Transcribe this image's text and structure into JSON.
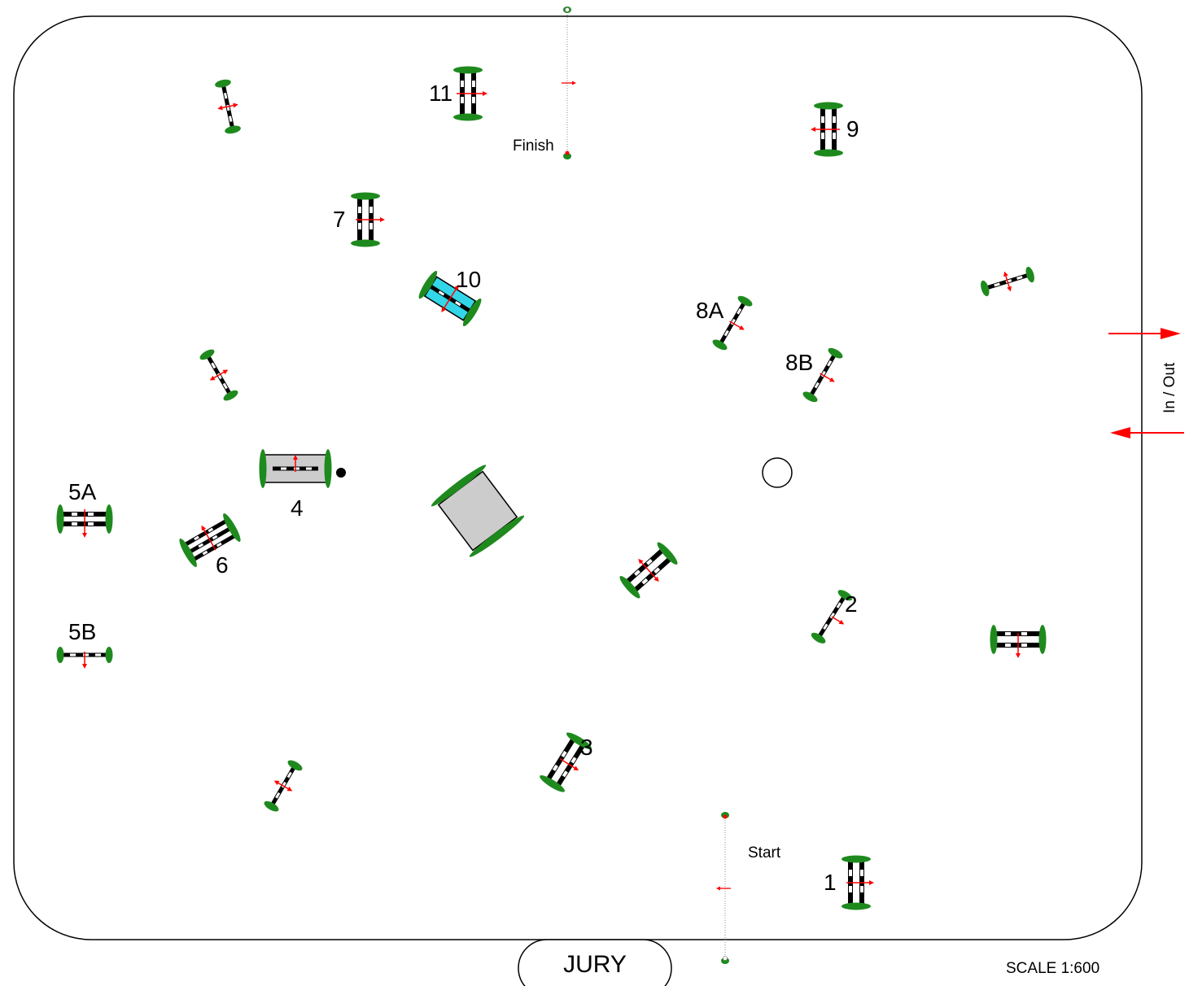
{
  "colors": {
    "arena_border": "#000000",
    "pole_dark": "#000000",
    "pole_light": "#ffffff",
    "wing_green": "#1e8a1e",
    "direction_arrow": "#ff0000",
    "water_fill": "#33d6e8",
    "box_fill": "#cccccc"
  },
  "labels": {
    "finish": "Finish",
    "start": "Start",
    "in_out": "In / Out",
    "jury": "JURY",
    "scale": "SCALE 1:600"
  },
  "obstacles": [
    {
      "number": "1"
    },
    {
      "number": "2"
    },
    {
      "number": "3"
    },
    {
      "number": "4"
    },
    {
      "number": "5A"
    },
    {
      "number": "5B"
    },
    {
      "number": "6"
    },
    {
      "number": "7"
    },
    {
      "number": "8A"
    },
    {
      "number": "8B"
    },
    {
      "number": "9"
    },
    {
      "number": "10"
    },
    {
      "number": "11"
    }
  ]
}
